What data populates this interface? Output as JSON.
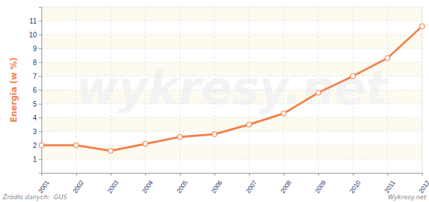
{
  "chart_data": {
    "type": "line",
    "y_label": "Energia (w %)",
    "source": "Źródło danych:  GUS",
    "credit": "Wykresy.net",
    "watermark": "wykresy.net",
    "x": [
      2001,
      2002,
      2003,
      2004,
      2005,
      2006,
      2007,
      2008,
      2009,
      2010,
      2011,
      2012
    ],
    "values": [
      2.0,
      2.0,
      1.6,
      2.1,
      2.6,
      2.8,
      3.5,
      4.3,
      5.8,
      7.0,
      8.3,
      10.6
    ],
    "xlim": [
      2001,
      2012
    ],
    "xticks": [
      2001,
      2002,
      2003,
      2004,
      2005,
      2006,
      2007,
      2008,
      2009,
      2010,
      2011,
      2012
    ],
    "ylim": [
      0,
      12
    ],
    "yticks": [
      1,
      2,
      3,
      4,
      5,
      6,
      7,
      8,
      9,
      10,
      11
    ],
    "color": "#f4804a",
    "marker": "circle",
    "line_style": "solid",
    "grid": true
  }
}
